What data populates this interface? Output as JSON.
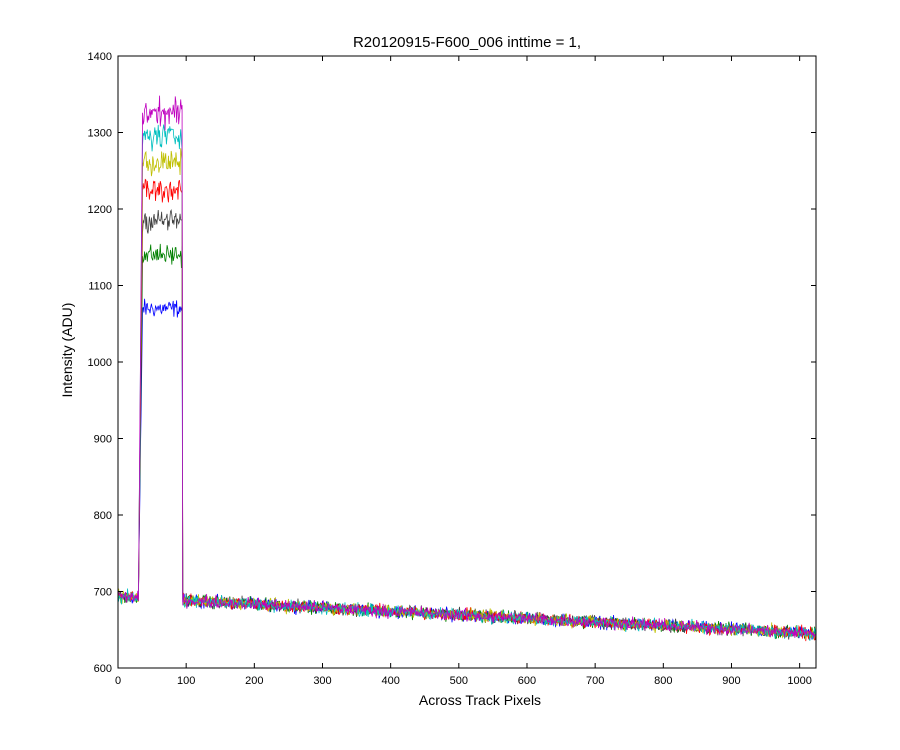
{
  "chart_data": {
    "type": "line",
    "title": "R20120915-F600_006 inttime = 1,",
    "xlabel": "Across Track Pixels",
    "ylabel": "Intensity (ADU)",
    "xlim": [
      0,
      1024
    ],
    "ylim": [
      600,
      1400
    ],
    "xticks": [
      0,
      100,
      200,
      300,
      400,
      500,
      600,
      700,
      800,
      900,
      1000
    ],
    "yticks": [
      600,
      700,
      800,
      900,
      1000,
      1100,
      1200,
      1300,
      1400
    ],
    "grid": false,
    "baseline": {
      "start_value": 693,
      "end_value": 645,
      "noise_amplitude": 12
    },
    "peak_region": {
      "x_start": 31,
      "x_end": 94
    },
    "series": [
      {
        "name": "series-1",
        "color": "#0000ff",
        "peak_level": 1070
      },
      {
        "name": "series-2",
        "color": "#008000",
        "peak_level": 1140
      },
      {
        "name": "series-3",
        "color": "#404040",
        "peak_level": 1185
      },
      {
        "name": "series-4",
        "color": "#ff0000",
        "peak_level": 1225
      },
      {
        "name": "series-5",
        "color": "#bfbf00",
        "peak_level": 1260
      },
      {
        "name": "series-6",
        "color": "#00bfbf",
        "peak_level": 1295
      },
      {
        "name": "series-7",
        "color": "#bf00bf",
        "peak_level": 1325
      }
    ]
  }
}
